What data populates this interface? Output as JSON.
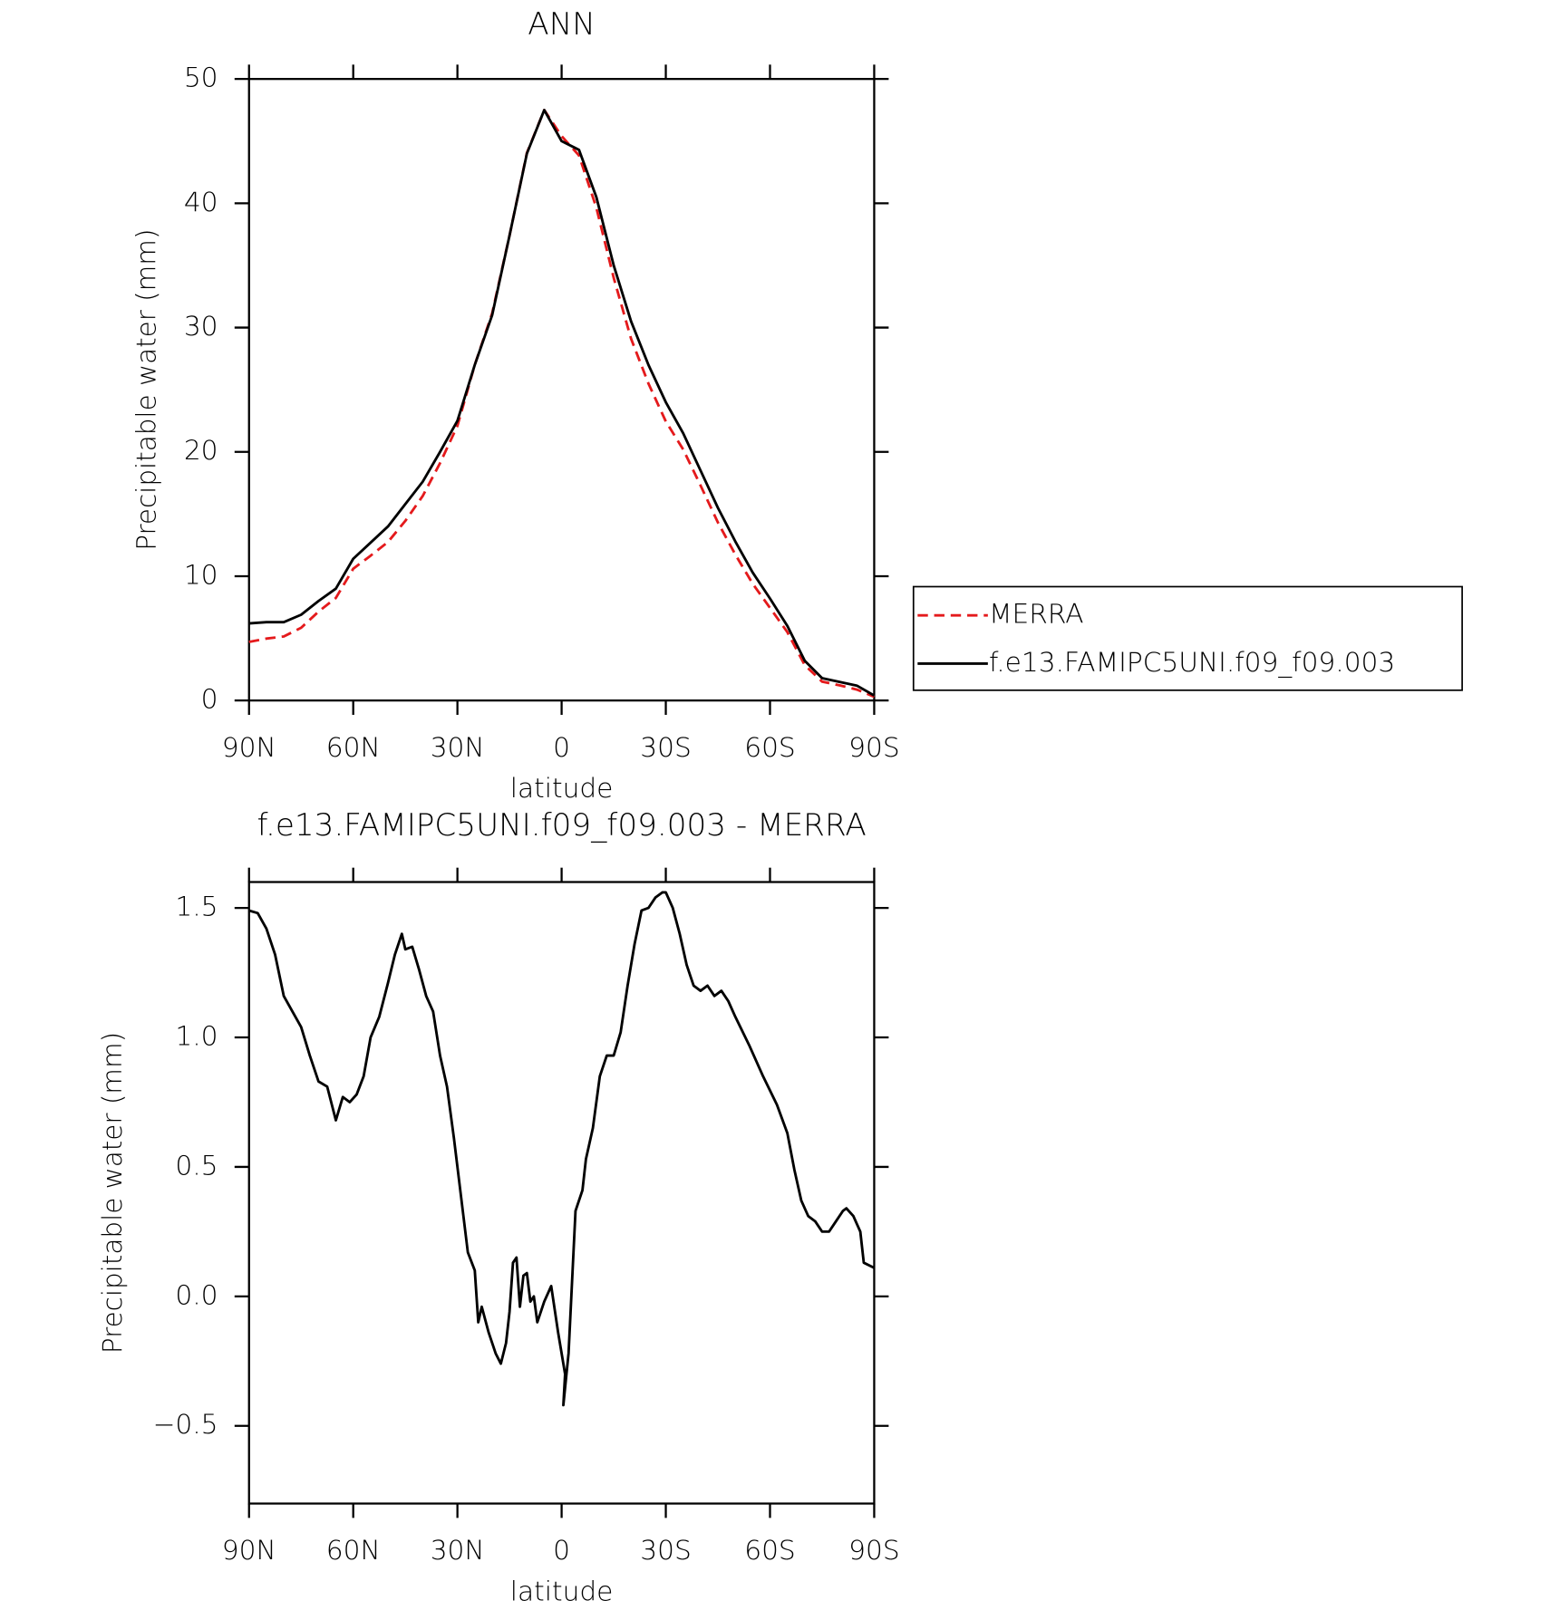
{
  "chart_data": [
    {
      "type": "line",
      "title": "ANN",
      "ylabel": "Precipitable water (mm)",
      "xlabel": "latitude",
      "x": [
        90,
        85,
        80,
        75,
        70,
        65,
        60,
        55,
        50,
        45,
        40,
        35,
        30,
        25,
        20,
        15,
        10,
        5,
        0,
        -5,
        -10,
        -15,
        -20,
        -25,
        -30,
        -35,
        -40,
        -45,
        -50,
        -55,
        -60,
        -65,
        -70,
        -75,
        -80,
        -85,
        -90
      ],
      "series": [
        {
          "name": "MERRA",
          "color": "#e41a1c",
          "style": "dashed",
          "values": [
            4.71,
            4.98,
            5.15,
            5.85,
            7.15,
            8.25,
            10.6,
            11.65,
            12.75,
            14.45,
            16.45,
            19.1,
            22.1,
            27.0,
            31.15,
            37.4,
            44.05,
            47.5,
            45.4,
            43.85,
            39.65,
            34.0,
            29.1,
            25.5,
            22.45,
            20.2,
            17.3,
            14.32,
            11.75,
            9.4,
            7.45,
            5.5,
            2.85,
            1.52,
            1.22,
            0.88,
            0.3
          ]
        },
        {
          "name": "f.e13.FAMIPC5UNI.f09_f09.003",
          "color": "#000000",
          "style": "solid",
          "values": [
            6.2,
            6.3,
            6.3,
            6.9,
            8.0,
            9.0,
            11.4,
            12.7,
            14.0,
            15.8,
            17.6,
            20.0,
            22.5,
            27.0,
            31.0,
            37.4,
            44.0,
            47.5,
            45.0,
            44.3,
            40.5,
            35.0,
            30.5,
            27.0,
            24.0,
            21.5,
            18.5,
            15.5,
            12.8,
            10.3,
            8.2,
            6.0,
            3.2,
            1.8,
            1.5,
            1.2,
            0.4
          ]
        }
      ],
      "xlim": [
        90,
        -90
      ],
      "xticks": [
        {
          "value": 90,
          "label": "90N"
        },
        {
          "value": 60,
          "label": "60N"
        },
        {
          "value": 30,
          "label": "30N"
        },
        0,
        {
          "value": -30,
          "label": "30S"
        },
        {
          "value": -60,
          "label": "60S"
        },
        {
          "value": -90,
          "label": "90S"
        }
      ],
      "ylim": [
        0,
        50
      ],
      "yticks": [
        0,
        10,
        20,
        30,
        40,
        50
      ],
      "legend": "right",
      "grid": false
    },
    {
      "type": "line",
      "title": "f.e13.FAMIPC5UNI.f09_f09.003 - MERRA",
      "ylabel": "Precipitable water (mm)",
      "xlabel": "latitude",
      "color": "#000000",
      "x": [
        90,
        87.5,
        85,
        82.5,
        80,
        77.5,
        75,
        72.5,
        70,
        67.5,
        65,
        63,
        61,
        59,
        57,
        55,
        52.5,
        50,
        48,
        46,
        45,
        43,
        41,
        39,
        37,
        35,
        33,
        31,
        29,
        27,
        25,
        24,
        23,
        21,
        19,
        17.5,
        16,
        15,
        14,
        13,
        12,
        11,
        10,
        9,
        8,
        7,
        5,
        3,
        1,
        -1,
        -0.5,
        -2,
        -4,
        -6,
        -7,
        -9,
        -11,
        -13,
        -15,
        -17,
        -19,
        -21,
        -23,
        -25,
        -27,
        -29,
        -30,
        -32,
        -34,
        -36,
        -38,
        -40,
        -42,
        -44,
        -46,
        -48,
        -50,
        -54,
        -58,
        -62,
        -65,
        -67,
        -69,
        -71,
        -73,
        -75,
        -77,
        -79,
        -81,
        -82,
        -84,
        -86,
        -87,
        -90
      ],
      "values": [
        1.49,
        1.48,
        1.42,
        1.32,
        1.16,
        1.1,
        1.04,
        0.93,
        0.83,
        0.81,
        0.68,
        0.77,
        0.75,
        0.78,
        0.85,
        1.0,
        1.08,
        1.21,
        1.32,
        1.4,
        1.34,
        1.35,
        1.26,
        1.16,
        1.1,
        0.93,
        0.81,
        0.61,
        0.39,
        0.17,
        0.1,
        -0.1,
        -0.04,
        -0.14,
        -0.22,
        -0.26,
        -0.18,
        -0.06,
        0.13,
        0.15,
        -0.04,
        0.08,
        0.09,
        -0.02,
        0.0,
        -0.1,
        -0.02,
        0.04,
        -0.14,
        -0.3,
        -0.42,
        -0.22,
        0.33,
        0.41,
        0.53,
        0.65,
        0.85,
        0.93,
        0.93,
        1.02,
        1.2,
        1.36,
        1.49,
        1.5,
        1.54,
        1.56,
        1.56,
        1.5,
        1.4,
        1.28,
        1.2,
        1.18,
        1.2,
        1.16,
        1.18,
        1.14,
        1.08,
        0.97,
        0.85,
        0.74,
        0.63,
        0.49,
        0.37,
        0.31,
        0.29,
        0.25,
        0.25,
        0.29,
        0.33,
        0.34,
        0.31,
        0.25,
        0.13,
        0.11
      ],
      "xlim": [
        90,
        -90
      ],
      "xticks": [
        {
          "value": 90,
          "label": "90N"
        },
        {
          "value": 60,
          "label": "60N"
        },
        {
          "value": 30,
          "label": "30N"
        },
        0,
        {
          "value": -30,
          "label": "30S"
        },
        {
          "value": -60,
          "label": "60S"
        },
        {
          "value": -90,
          "label": "90S"
        }
      ],
      "ylim": [
        -0.8,
        1.6
      ],
      "yticks": [
        {
          "value": -0.5,
          "label": "−0.5"
        },
        {
          "value": 0,
          "label": "0.0"
        },
        0.5,
        {
          "value": 1,
          "label": "1.0"
        },
        1.5
      ],
      "grid": false
    }
  ]
}
